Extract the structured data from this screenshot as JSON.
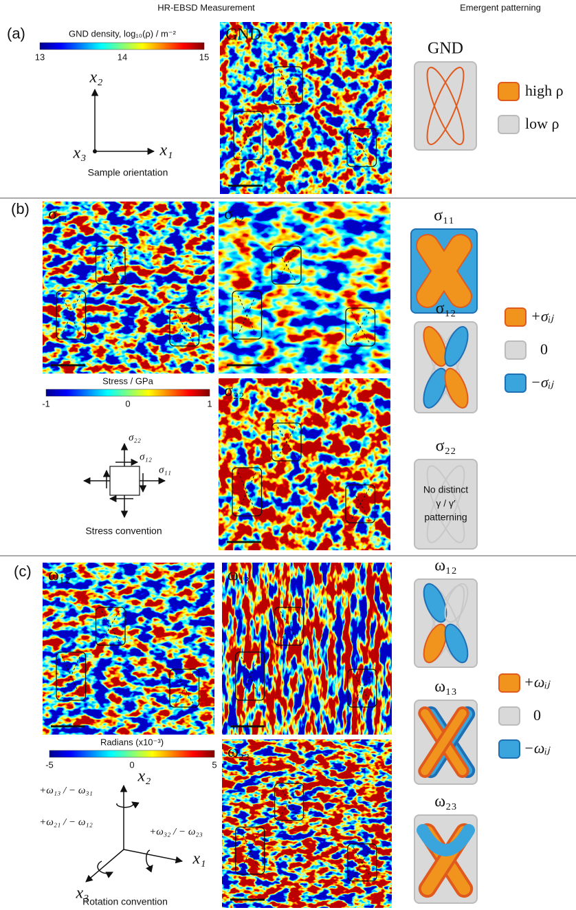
{
  "headers": {
    "measurement": "HR-EBSD Measurement",
    "patterning": "Emergent patterning"
  },
  "panel_a": {
    "label": "(a)",
    "colorbar": {
      "title": "GND density, log₁₀(ρ) / m⁻²",
      "ticks": [
        "13",
        "14",
        "15"
      ]
    },
    "axes": {
      "x2": "x₂",
      "x3": "x₃",
      "x1": "x₁"
    },
    "caption": "Sample orientation",
    "maps": [
      "GND"
    ],
    "patterns": [
      "GND"
    ],
    "legend": [
      "high ρ",
      "low ρ"
    ]
  },
  "panel_b": {
    "label": "(b)",
    "maps": [
      "σ₁₁",
      "σ₁₂",
      "σ₂₂"
    ],
    "colorbar": {
      "title": "Stress / GPa",
      "ticks": [
        "-1",
        "0",
        "1"
      ]
    },
    "convention": {
      "s22": "σ₂₂",
      "s12": "σ₁₂",
      "s11": "σ₁₁"
    },
    "caption": "Stress convention",
    "patterns": [
      "σ₁₁",
      "σ₁₂",
      "σ₂₂"
    ],
    "pattern_note": [
      "No distinct",
      "γ / γ′",
      "patterning"
    ],
    "legend": [
      "+σᵢⱼ",
      "0",
      "−σᵢⱼ"
    ]
  },
  "panel_c": {
    "label": "(c)",
    "maps": [
      "ω₁₂",
      "ω₁₃",
      "ω₂₃"
    ],
    "colorbar": {
      "title": "Radians (x10⁻³)",
      "ticks": [
        "-5",
        "0",
        "5"
      ]
    },
    "convention": {
      "w13": "+ω₁₃ / − ω₃₁",
      "w21": "+ω₂₁ / − ω₁₂",
      "w32": "+ω₃₂ / − ω₂₃",
      "x2": "x₂",
      "x1": "x₁",
      "x3": "x₃"
    },
    "caption": "Rotation convention",
    "patterns": [
      "ω₁₂",
      "ω₁₃",
      "ω₂₃"
    ],
    "legend": [
      "+ωᵢⱼ",
      "0",
      "−ωᵢⱼ"
    ]
  }
}
